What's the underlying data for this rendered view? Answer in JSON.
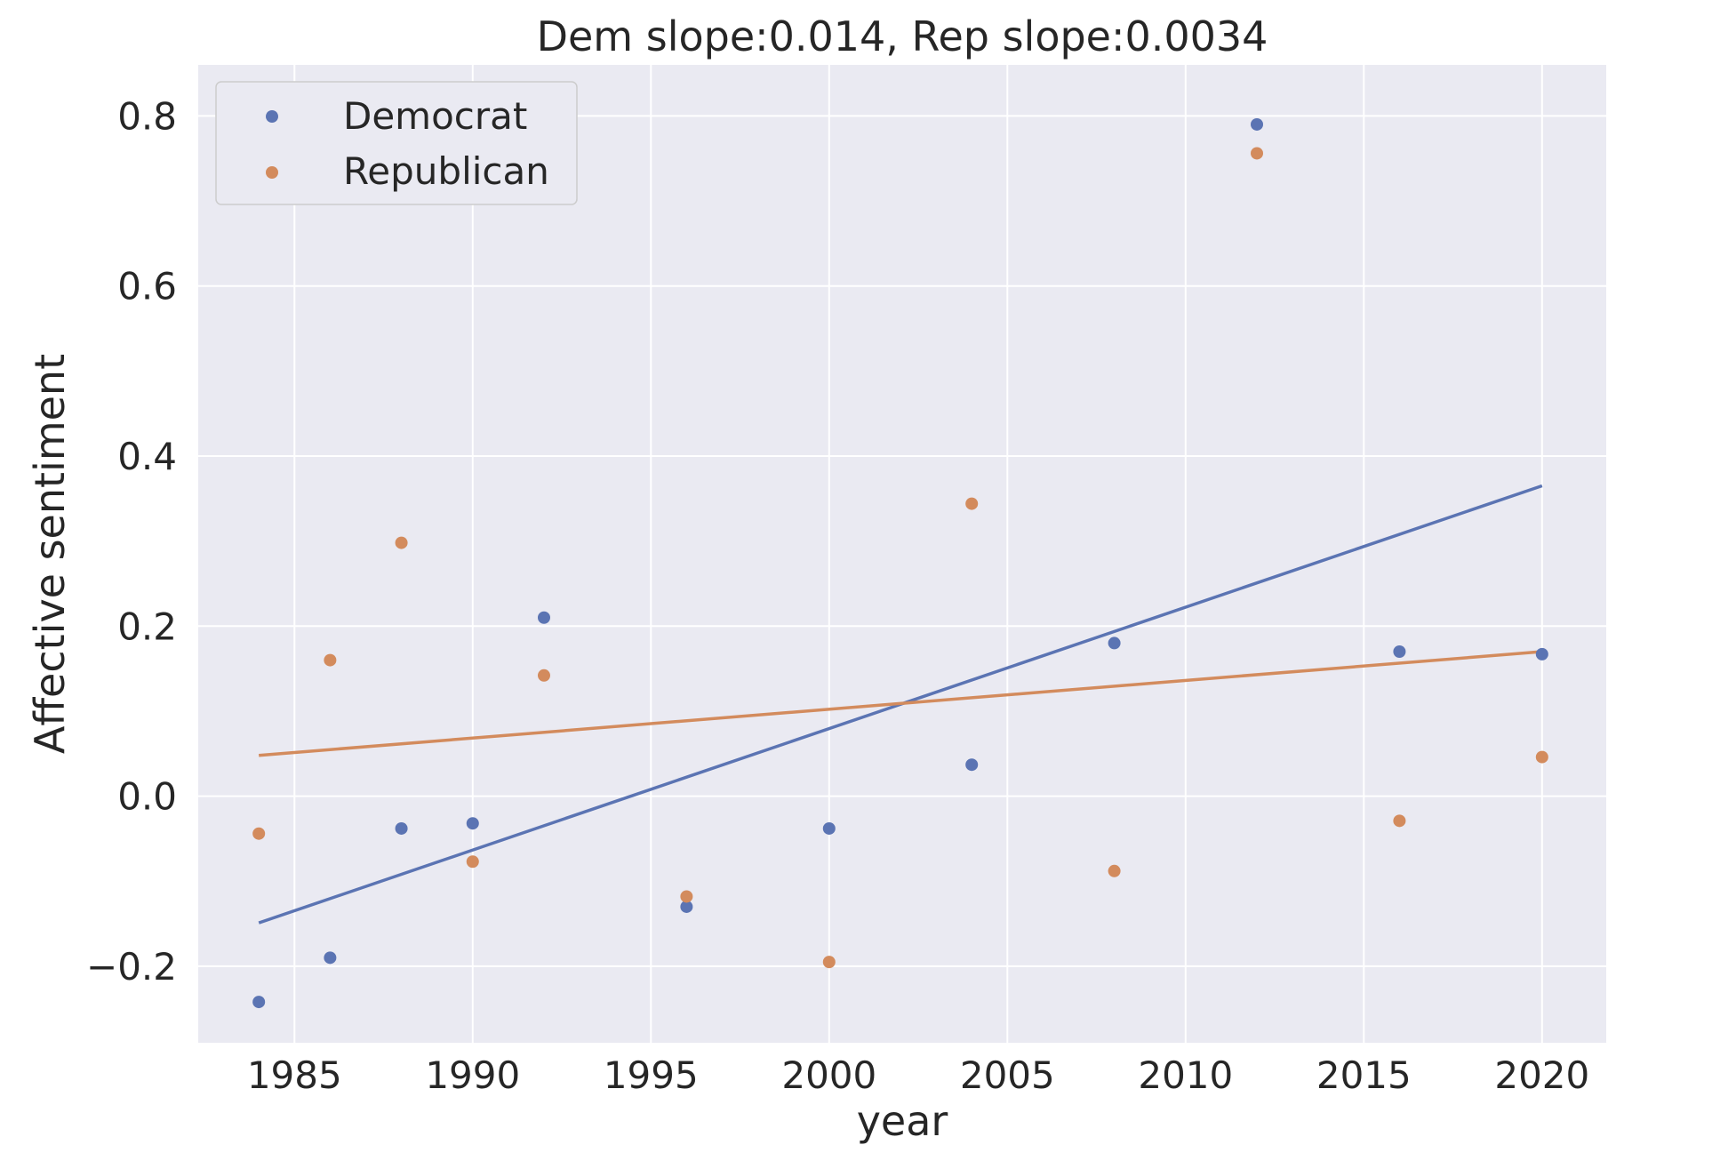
{
  "chart_data": {
    "type": "scatter",
    "title": "Dem slope:0.014, Rep slope:0.0034",
    "xlabel": "year",
    "ylabel": "Affective sentiment",
    "xlim": [
      1982.3,
      2021.8
    ],
    "ylim": [
      -0.29,
      0.86
    ],
    "x_ticks": [
      1985,
      1990,
      1995,
      2000,
      2005,
      2010,
      2015,
      2020
    ],
    "x_tick_labels": [
      "1985",
      "1990",
      "1995",
      "2000",
      "2005",
      "2010",
      "2015",
      "2020"
    ],
    "y_ticks": [
      -0.2,
      0.0,
      0.2,
      0.4,
      0.6,
      0.8
    ],
    "y_tick_labels": [
      "−0.2",
      "0.0",
      "0.2",
      "0.4",
      "0.6",
      "0.8"
    ],
    "grid": true,
    "legend_position": "top-left",
    "series": [
      {
        "name": "Democrat",
        "color": "#5b74b3",
        "x": [
          1984,
          1986,
          1988,
          1990,
          1992,
          1996,
          2000,
          2004,
          2008,
          2012,
          2016,
          2020
        ],
        "y": [
          -0.242,
          -0.19,
          -0.038,
          -0.032,
          0.21,
          -0.13,
          -0.038,
          0.037,
          0.18,
          0.79,
          0.17,
          0.167
        ],
        "fit": {
          "x": [
            1984,
            2020
          ],
          "y": [
            -0.149,
            0.365
          ]
        }
      },
      {
        "name": "Republican",
        "color": "#d38b5d",
        "x": [
          1984,
          1986,
          1988,
          1990,
          1992,
          1996,
          2000,
          2004,
          2008,
          2012,
          2016,
          2020
        ],
        "y": [
          -0.044,
          0.16,
          0.298,
          -0.077,
          0.142,
          -0.118,
          -0.195,
          0.344,
          -0.088,
          0.756,
          -0.029,
          0.046
        ],
        "fit": {
          "x": [
            1984,
            2020
          ],
          "y": [
            0.048,
            0.17
          ]
        }
      }
    ]
  }
}
